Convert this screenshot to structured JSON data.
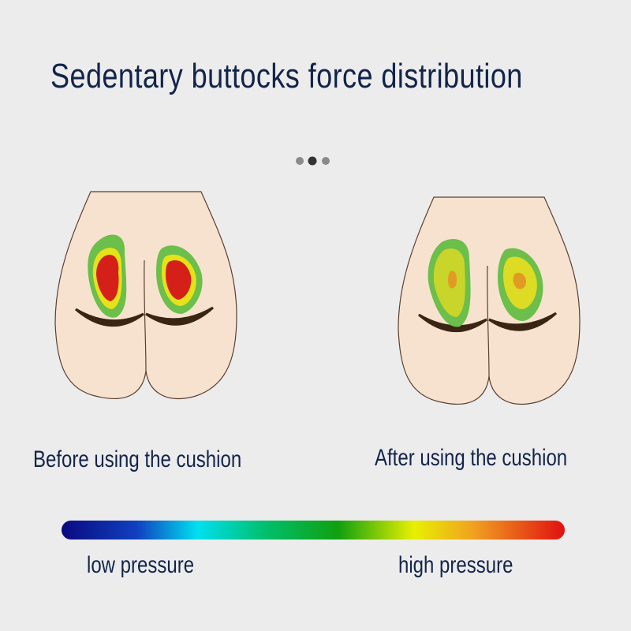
{
  "title": "Sedentary buttocks force distribution",
  "carousel": {
    "dot_count": 3,
    "active_index": 1
  },
  "panels": [
    {
      "caption": "Before using the cushion",
      "pressure_zones": [
        "green",
        "yellow",
        "red"
      ]
    },
    {
      "caption": "After using the cushion",
      "pressure_zones": [
        "green",
        "yellow-green",
        "orange"
      ]
    }
  ],
  "legend": {
    "low_label": "low pressure",
    "high_label": "high pressure",
    "gradient_colors": [
      "#0a0a80",
      "#1040c0",
      "#00e0f0",
      "#00c070",
      "#10a010",
      "#e0f000",
      "#f0a020",
      "#e01010"
    ]
  },
  "colors": {
    "skin": "#f7e2d0",
    "crease": "#3a2412",
    "text": "#13244a",
    "green": "#6bbf4a",
    "yellow": "#e6e21a",
    "red": "#d42018",
    "yellow_green": "#c9d52a",
    "orange": "#e39a25"
  }
}
